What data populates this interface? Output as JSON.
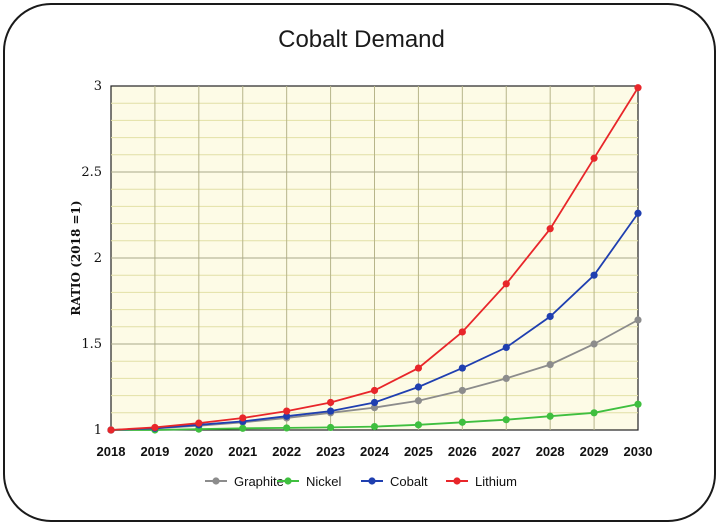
{
  "chart_data": {
    "type": "line",
    "title": "Cobalt Demand",
    "xlabel": "",
    "ylabel": "RATIO (2018 =1)",
    "x": [
      "2018",
      "2019",
      "2020",
      "2021",
      "2022",
      "2023",
      "2024",
      "2025",
      "2026",
      "2027",
      "2028",
      "2029",
      "2030"
    ],
    "ylim": [
      1,
      3
    ],
    "yticks": [
      "1",
      "1.5",
      "2",
      "2.5",
      "3"
    ],
    "grid": true,
    "legend_position": "bottom",
    "series": [
      {
        "name": "Graphite",
        "color": "#8c8c8c",
        "values": [
          1.0,
          1.01,
          1.025,
          1.045,
          1.07,
          1.1,
          1.13,
          1.17,
          1.23,
          1.3,
          1.38,
          1.5,
          1.64
        ]
      },
      {
        "name": "Nickel",
        "color": "#3fbf3f",
        "values": [
          1.0,
          1.0,
          1.005,
          1.01,
          1.012,
          1.015,
          1.02,
          1.03,
          1.045,
          1.06,
          1.08,
          1.1,
          1.15
        ]
      },
      {
        "name": "Cobalt",
        "color": "#1f3fb0",
        "values": [
          1.0,
          1.01,
          1.03,
          1.05,
          1.08,
          1.11,
          1.16,
          1.25,
          1.36,
          1.48,
          1.66,
          1.9,
          2.26
        ]
      },
      {
        "name": "Lithium",
        "color": "#e8262a",
        "values": [
          1.0,
          1.015,
          1.04,
          1.07,
          1.11,
          1.16,
          1.23,
          1.36,
          1.57,
          1.85,
          2.17,
          2.58,
          2.99
        ]
      }
    ]
  }
}
